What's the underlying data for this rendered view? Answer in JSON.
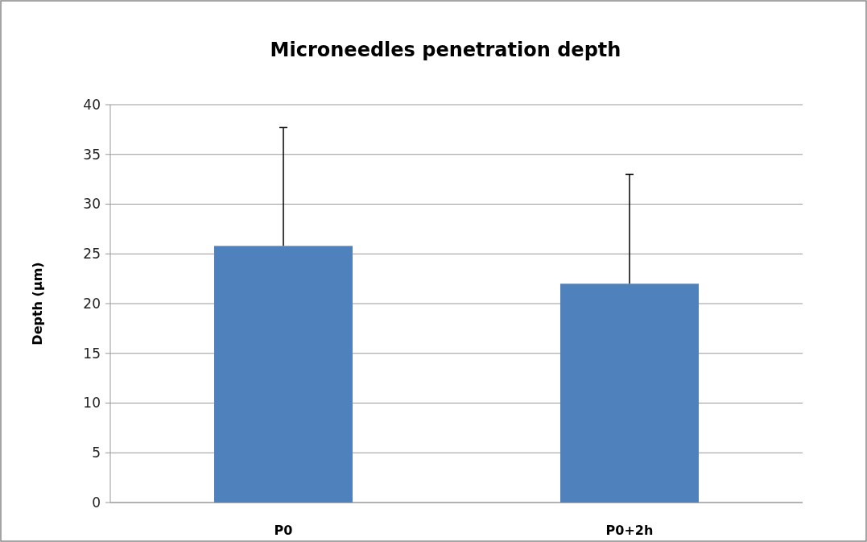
{
  "chart_data": {
    "type": "bar",
    "title": "Microneedles penetration depth",
    "ylabel": "Depth (µm)",
    "categories": [
      "P0",
      "P0+2h"
    ],
    "values": [
      25.8,
      22.0
    ],
    "errors": [
      [
        25.8,
        37.7
      ],
      [
        22.0,
        33.0
      ]
    ],
    "color": "#4f81bd",
    "ylim": [
      0,
      40
    ],
    "yticks": [
      0,
      5,
      10,
      15,
      20,
      25,
      30,
      35,
      40
    ],
    "grid": "y"
  }
}
